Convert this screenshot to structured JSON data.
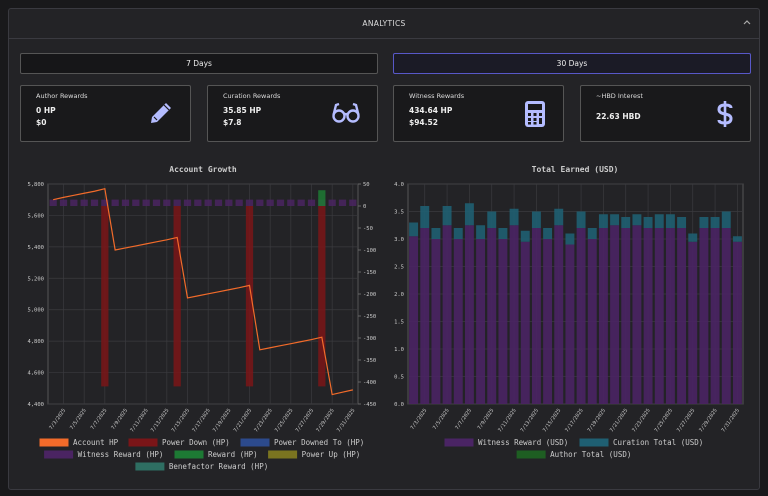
{
  "header": {
    "title": "ANALYTICS"
  },
  "tabs": [
    "7 Days",
    "30 Days"
  ],
  "cards": [
    {
      "label": "Author Rewards",
      "lines": [
        "0 HP",
        "$0"
      ]
    },
    {
      "label": "Curation Rewards",
      "lines": [
        "35.85 HP",
        "$7.8"
      ]
    },
    {
      "label": "Witness Rewards",
      "lines": [
        "434.64 HP",
        "$94.52"
      ]
    },
    {
      "label": "~HBD Interest",
      "lines": [
        "22.63 HBD"
      ]
    }
  ],
  "chart_data": [
    {
      "type": "mixed",
      "title": "Account Growth",
      "categories": [
        null,
        "7/3/2025",
        null,
        "7/5/2025",
        null,
        "7/7/2025",
        null,
        "7/9/2025",
        null,
        "7/11/2025",
        null,
        "7/13/2025",
        null,
        "7/15/2025",
        null,
        "7/17/2025",
        null,
        "7/19/2025",
        null,
        "7/21/2025",
        null,
        "7/23/2025",
        null,
        "7/25/2025",
        null,
        "7/27/2025",
        null,
        "7/29/2025",
        null,
        "7/31/2025"
      ],
      "ylim": [
        4400,
        5800
      ],
      "yticks": [
        {
          "value": 4400,
          "label": "4,400"
        },
        {
          "value": 4600,
          "label": "4,600"
        },
        {
          "value": 4800,
          "label": "4,800"
        },
        {
          "value": 5000,
          "label": "5,000"
        },
        {
          "value": 5200,
          "label": "5,200"
        },
        {
          "value": 5400,
          "label": "5,400"
        },
        {
          "value": 5600,
          "label": "5,600"
        },
        {
          "value": 5800,
          "label": "5,800"
        }
      ],
      "y2lim": [
        -450,
        50
      ],
      "y2ticks": [
        50,
        0,
        -50,
        -100,
        -150,
        -200,
        -250,
        -300,
        -350,
        -400,
        -450
      ],
      "grid": true,
      "series": [
        {
          "name": "Account HP",
          "type": "line",
          "color": "#f26b2a",
          "values": [
            5700,
            5715,
            5728,
            5741,
            5754,
            5770,
            5380,
            5393,
            5406,
            5419,
            5432,
            5445,
            5460,
            5075,
            5088,
            5101,
            5114,
            5127,
            5140,
            5155,
            4745,
            4758,
            4771,
            4784,
            4797,
            4810,
            4825,
            4460,
            4475,
            4490
          ]
        },
        {
          "name": "Power Down (HP)",
          "type": "bar",
          "axis": "y2",
          "color": "#7a1518",
          "values": [
            0,
            0,
            0,
            0,
            0,
            -410,
            0,
            0,
            0,
            0,
            0,
            0,
            -410,
            0,
            0,
            0,
            0,
            0,
            0,
            -410,
            0,
            0,
            0,
            0,
            0,
            0,
            -410,
            0,
            0,
            0
          ]
        },
        {
          "name": "Power Downed To (HP)",
          "type": "bar",
          "axis": "y2",
          "color": "#2c4a8c",
          "values": [
            0,
            0,
            0,
            0,
            0,
            0,
            0,
            0,
            0,
            0,
            0,
            0,
            0,
            0,
            0,
            0,
            0,
            0,
            0,
            0,
            0,
            0,
            0,
            0,
            0,
            0,
            0,
            0,
            0,
            0
          ]
        },
        {
          "name": "Witness Reward (HP)",
          "type": "bar",
          "axis": "y2",
          "color": "#4a2462",
          "values": [
            14.5,
            14.5,
            14.5,
            14.5,
            14.5,
            14.5,
            14.5,
            14.5,
            14.5,
            14.5,
            14.5,
            14.5,
            14.5,
            14.5,
            14.5,
            14.5,
            14.5,
            14.5,
            14.5,
            14.5,
            14.5,
            14.5,
            14.5,
            14.5,
            14.5,
            14.5,
            14.5,
            14.5,
            14.5,
            14.5
          ]
        },
        {
          "name": "Reward (HP)",
          "type": "bar",
          "axis": "y2",
          "color": "#1d7a34",
          "values": [
            0,
            0,
            0,
            0,
            0,
            0,
            0,
            0,
            0,
            0,
            0,
            0,
            0,
            0,
            0,
            0,
            0,
            0,
            0,
            0,
            0,
            0,
            0,
            0,
            0,
            0,
            35.85,
            0,
            0,
            0
          ]
        },
        {
          "name": "Power Up (HP)",
          "type": "bar",
          "axis": "y2",
          "color": "#7a7420",
          "values": [
            0,
            0,
            0,
            0,
            0,
            0,
            0,
            0,
            0,
            0,
            0,
            0,
            0,
            0,
            0,
            0,
            0,
            0,
            0,
            0,
            0,
            0,
            0,
            0,
            0,
            0,
            0,
            0,
            0,
            0
          ]
        },
        {
          "name": "Benefactor Reward (HP)",
          "type": "bar",
          "axis": "y2",
          "color": "#2e6e62",
          "values": [
            0,
            0,
            0,
            0,
            0,
            0,
            0,
            0,
            0,
            0,
            0,
            0,
            0,
            0,
            0,
            0,
            0,
            0,
            0,
            0,
            0,
            0,
            0,
            0,
            0,
            0,
            0,
            0,
            0,
            0
          ]
        }
      ]
    },
    {
      "type": "stacked",
      "title": "Total Earned (USD)",
      "categories": [
        null,
        "7/3/2025",
        null,
        "7/5/2025",
        null,
        "7/7/2025",
        null,
        "7/9/2025",
        null,
        "7/11/2025",
        null,
        "7/13/2025",
        null,
        "7/15/2025",
        null,
        "7/17/2025",
        null,
        "7/19/2025",
        null,
        "7/21/2025",
        null,
        "7/23/2025",
        null,
        "7/25/2025",
        null,
        "7/27/2025",
        null,
        "7/29/2025",
        null,
        "7/31/2025"
      ],
      "ylim": [
        0,
        4
      ],
      "yticks": [
        {
          "value": 0,
          "label": "0.0"
        },
        0.5,
        {
          "value": 1,
          "label": "1.0"
        },
        1.5,
        {
          "value": 2,
          "label": "2.0"
        },
        2.5,
        {
          "value": 3,
          "label": "3.0"
        },
        3.5,
        {
          "value": 4,
          "label": "4.0"
        }
      ],
      "grid": true,
      "series": [
        {
          "name": "Witness Reward (USD)",
          "color": "#4a2464",
          "values": [
            3.05,
            3.2,
            3.0,
            3.25,
            3.0,
            3.25,
            3.0,
            3.2,
            3.0,
            3.25,
            2.95,
            3.2,
            3.0,
            3.25,
            2.9,
            3.2,
            3.0,
            3.2,
            3.25,
            3.2,
            3.25,
            3.2,
            3.2,
            3.2,
            3.2,
            2.95,
            3.2,
            3.2,
            3.2,
            2.95
          ]
        },
        {
          "name": "Curation Total (USD)",
          "color": "#1f5f72",
          "values": [
            0.25,
            0.4,
            0.2,
            0.35,
            0.2,
            0.4,
            0.25,
            0.3,
            0.2,
            0.3,
            0.2,
            0.3,
            0.2,
            0.3,
            0.2,
            0.3,
            0.2,
            0.25,
            0.2,
            0.2,
            0.2,
            0.2,
            0.25,
            0.25,
            0.2,
            0.15,
            0.2,
            0.2,
            0.3,
            0.1
          ]
        },
        {
          "name": "Author Total (USD)",
          "color": "#1e5e22",
          "values": [
            0,
            0,
            0,
            0,
            0,
            0,
            0,
            0,
            0,
            0,
            0,
            0,
            0,
            0,
            0,
            0,
            0,
            0,
            0,
            0,
            0,
            0,
            0,
            0,
            0,
            0,
            0,
            0,
            0,
            0
          ]
        }
      ]
    }
  ]
}
